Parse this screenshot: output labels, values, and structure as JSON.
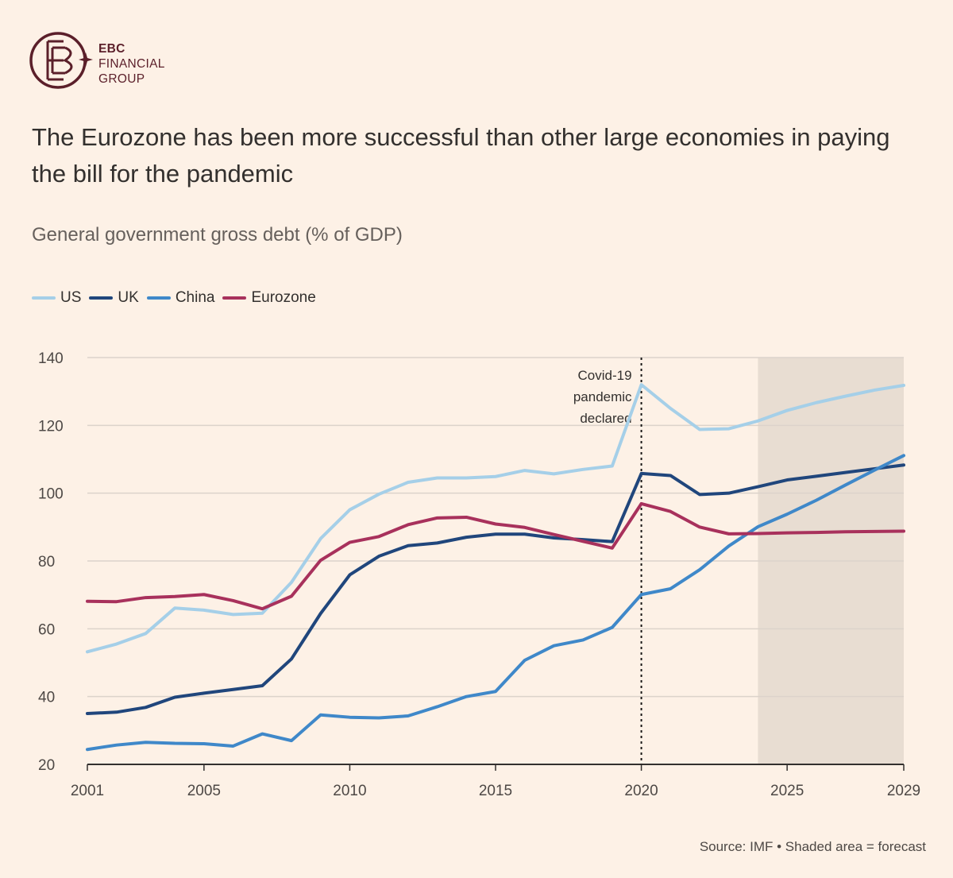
{
  "brand": {
    "name_line1": "EBC",
    "name_line2": "FINANCIAL",
    "name_line3": "GROUP",
    "color": "#5b1f2a"
  },
  "title": "The Eurozone has been more successful than other large economies in paying the bill for the pandemic",
  "subtitle": "General government gross debt (% of GDP)",
  "source": "Source: IMF • Shaded area = forecast",
  "chart_data": {
    "type": "line",
    "x": [
      2001,
      2002,
      2003,
      2004,
      2005,
      2006,
      2007,
      2008,
      2009,
      2010,
      2011,
      2012,
      2013,
      2014,
      2015,
      2016,
      2017,
      2018,
      2019,
      2020,
      2021,
      2022,
      2023,
      2024,
      2025,
      2026,
      2027,
      2028,
      2029
    ],
    "series": [
      {
        "name": "US",
        "color": "#a5cfe8",
        "values": [
          53.2,
          55.5,
          58.6,
          66.1,
          65.5,
          64.2,
          64.6,
          73.7,
          86.6,
          95.1,
          99.7,
          103.2,
          104.5,
          104.5,
          104.9,
          106.7,
          105.7,
          107.0,
          108.0,
          132.0,
          125.0,
          118.8,
          119.0,
          121.3,
          124.4,
          126.7,
          128.6,
          130.4,
          131.8
        ]
      },
      {
        "name": "UK",
        "color": "#20467c",
        "values": [
          35.0,
          35.4,
          36.8,
          39.8,
          41.0,
          42.1,
          43.2,
          51.1,
          64.5,
          75.9,
          81.4,
          84.5,
          85.3,
          87.0,
          87.9,
          87.9,
          86.8,
          86.3,
          85.7,
          105.8,
          105.2,
          99.6,
          100.0,
          101.9,
          103.9,
          105.0,
          106.1,
          107.2,
          108.3
        ]
      },
      {
        "name": "China",
        "color": "#3f88c9",
        "values": [
          24.4,
          25.7,
          26.5,
          26.2,
          26.1,
          25.4,
          29.0,
          27.0,
          34.6,
          33.9,
          33.7,
          34.3,
          37.0,
          40.0,
          41.5,
          50.7,
          55.0,
          56.7,
          60.4,
          70.1,
          71.8,
          77.4,
          84.4,
          90.1,
          93.8,
          97.9,
          102.4,
          106.8,
          111.1
        ]
      },
      {
        "name": "Eurozone",
        "color": "#a8315c",
        "values": [
          68.1,
          68.0,
          69.2,
          69.5,
          70.1,
          68.3,
          65.9,
          69.6,
          80.2,
          85.5,
          87.2,
          90.7,
          92.7,
          92.9,
          90.9,
          89.9,
          87.8,
          85.8,
          83.8,
          96.9,
          94.6,
          90.0,
          88.0,
          88.1,
          88.3,
          88.4,
          88.6,
          88.7,
          88.8
        ]
      }
    ],
    "ylim": [
      20,
      140
    ],
    "yticks": [
      20,
      40,
      60,
      80,
      100,
      120,
      140
    ],
    "xlim": [
      2001,
      2029
    ],
    "xticks": [
      2001,
      2005,
      2010,
      2015,
      2020,
      2025,
      2029
    ],
    "forecast_start": 2024,
    "forecast_end": 2029,
    "annotation": {
      "x": 2020,
      "lines": [
        "Covid-19",
        "pandemic",
        "declared"
      ]
    },
    "colors": {
      "grid": "#dcd3cb",
      "forecast_shade": "#e8ddd2",
      "axis": "#33302e"
    }
  }
}
